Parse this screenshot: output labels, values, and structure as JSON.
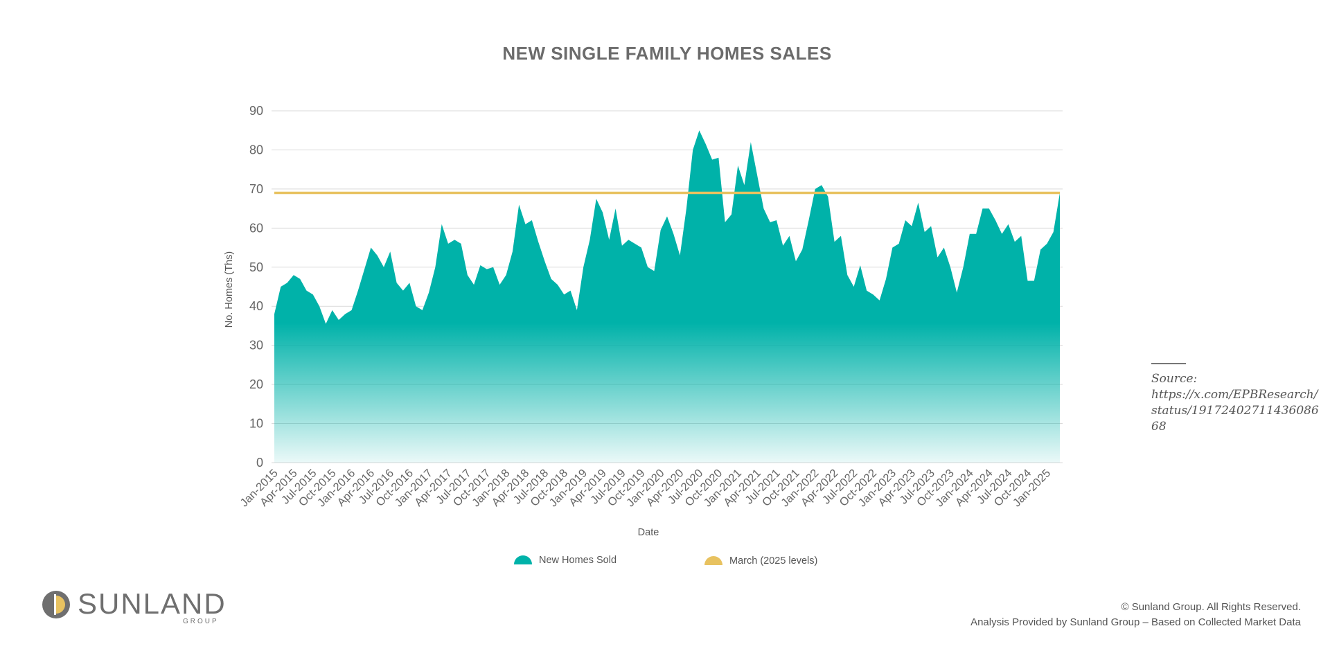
{
  "chart_data": {
    "type": "area",
    "title": "NEW SINGLE FAMILY HOMES SALES",
    "xlabel": "Date",
    "ylabel": "No. Homes (Ths)",
    "ylim": [
      0,
      90
    ],
    "yticks": [
      0,
      10,
      20,
      30,
      40,
      50,
      60,
      70,
      80,
      90
    ],
    "grid": true,
    "legend_position": "bottom",
    "x_tick_labels": [
      "Jan-2015",
      "Apr-2015",
      "Jul-2015",
      "Oct-2015",
      "Jan-2016",
      "Apr-2016",
      "Jul-2016",
      "Oct-2016",
      "Jan-2017",
      "Apr-2017",
      "Jul-2017",
      "Oct-2017",
      "Jan-2018",
      "Apr-2018",
      "Jul-2018",
      "Oct-2018",
      "Jan-2019",
      "Apr-2019",
      "Jul-2019",
      "Oct-2019",
      "Jan-2020",
      "Apr-2020",
      "Jul-2020",
      "Oct-2020",
      "Jan-2021",
      "Apr-2021",
      "Jul-2021",
      "Oct-2021",
      "Jan-2022",
      "Apr-2022",
      "Jul-2022",
      "Oct-2022",
      "Jan-2023",
      "Apr-2023",
      "Jul-2023",
      "Oct-2023",
      "Jan-2024",
      "Apr-2024",
      "Jul-2024",
      "Oct-2024",
      "Jan-2025"
    ],
    "x_start": "Jan-2015",
    "x_end": "Mar-2025",
    "series": [
      {
        "name": "New Homes Sold",
        "color": "#00b2a9",
        "kind": "area",
        "values": [
          38,
          45,
          46,
          48,
          47,
          44,
          43,
          40,
          35.5,
          39,
          36.5,
          38,
          39,
          44,
          49.5,
          55,
          53,
          50,
          54,
          46,
          44,
          46,
          40,
          39,
          43.5,
          50,
          61,
          56,
          57,
          56,
          48,
          45.5,
          50.5,
          49.5,
          50,
          45.5,
          48,
          54,
          66,
          61,
          62,
          56.5,
          51.5,
          47,
          45.5,
          43,
          44,
          39,
          50,
          57,
          67.5,
          64,
          57,
          65,
          55.5,
          57,
          56,
          55,
          50,
          49,
          59.5,
          63,
          58.5,
          53,
          65,
          80,
          85,
          81.5,
          77.5,
          78,
          61.5,
          63.5,
          76,
          71,
          82,
          73.5,
          65,
          61.5,
          62,
          55.5,
          58,
          51.5,
          54.5,
          62,
          70,
          71,
          68,
          56.5,
          58,
          48,
          45,
          50.5,
          44,
          43,
          41.5,
          47,
          55,
          56,
          62,
          60.5,
          66.5,
          59,
          60.5,
          52.5,
          55,
          50,
          43.5,
          50,
          58.5,
          58.5,
          65,
          65,
          62,
          58.5,
          61,
          56.5,
          58,
          46.5,
          46.5,
          54.5,
          56,
          59,
          69
        ]
      },
      {
        "name": "March (2025 levels)",
        "color": "#e8c260",
        "kind": "line",
        "value": 69
      }
    ]
  },
  "source": {
    "label": "Source:",
    "url": "https://x.com/EPBResearch/status/1917240271143608668"
  },
  "footer": {
    "copyright": "© Sunland Group. All Rights Reserved.",
    "analysis": "Analysis Provided by Sunland Group – Based on Collected Market Data"
  },
  "logo": {
    "name": "SUNLAND",
    "sub": "GROUP"
  },
  "colors": {
    "area": "#00b2a9",
    "reference_line": "#e8c260",
    "text": "#666666"
  }
}
